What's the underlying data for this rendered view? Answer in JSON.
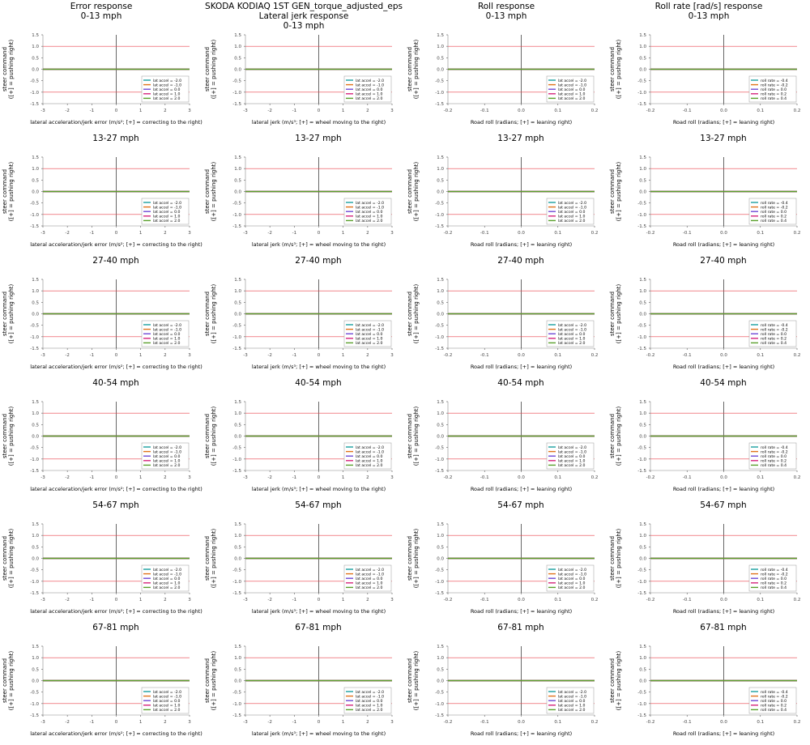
{
  "figure_title": "SKODA KODIAQ 1ST GEN_torque_adjusted_eps",
  "column_titles": [
    "Error response",
    "Lateral jerk response",
    "Roll response",
    "Roll rate [rad/s] response"
  ],
  "speed_bins": [
    "0-13 mph",
    "13-27 mph",
    "27-40 mph",
    "40-54 mph",
    "54-67 mph",
    "67-81 mph"
  ],
  "ylabel_line1": "steer command",
  "ylabel_line2": "([+] = pushing right)",
  "colors": {
    "reference_lines": "#e8424b",
    "axes": "#000000",
    "series": [
      "#1a9f9f",
      "#e0731c",
      "#6f49d6",
      "#d6257c",
      "#5aa02c"
    ]
  },
  "chart_data": [
    {
      "type": "line",
      "title": "Error response",
      "xlabel": "lateral acceleration/jerk error (m/s²; [+] = correcting to the right)",
      "ylabel": "steer command ([+] = pushing right)",
      "xlim": [
        -3,
        3
      ],
      "ylim": [
        -1.5,
        1.5
      ],
      "xticks": [
        "-3",
        "-2",
        "-1",
        "0",
        "1",
        "2",
        "3"
      ],
      "yticks": [
        "-1.5",
        "-1.0",
        "-0.5",
        "0.0",
        "0.5",
        "1.0",
        "1.5"
      ],
      "reference_lines_y": [
        1.0,
        -1.0
      ],
      "x": [
        -3,
        3
      ],
      "series": [
        {
          "name": "lat accel = -2.0",
          "values": [
            0,
            0
          ]
        },
        {
          "name": "lat accel = -1.0",
          "values": [
            0,
            0
          ]
        },
        {
          "name": "lat accel = 0.0",
          "values": [
            0,
            0
          ]
        },
        {
          "name": "lat accel = 1.0",
          "values": [
            0,
            0
          ]
        },
        {
          "name": "lat accel = 2.0",
          "values": [
            0,
            0
          ]
        }
      ],
      "legend": "bottom-right"
    },
    {
      "type": "line",
      "title": "Lateral jerk response",
      "xlabel": "lateral jerk (m/s³; [+] = wheel moving to the right)",
      "ylabel": "steer command ([+] = pushing right)",
      "xlim": [
        -3,
        3
      ],
      "ylim": [
        -1.5,
        1.5
      ],
      "xticks": [
        "-3",
        "-2",
        "-1",
        "0",
        "1",
        "2",
        "3"
      ],
      "yticks": [
        "-1.5",
        "-1.0",
        "-0.5",
        "0.0",
        "0.5",
        "1.0",
        "1.5"
      ],
      "reference_lines_y": [
        1.0,
        -1.0
      ],
      "x": [
        -3,
        3
      ],
      "series": [
        {
          "name": "lat accel = -2.0",
          "values": [
            0,
            0
          ]
        },
        {
          "name": "lat accel = -1.0",
          "values": [
            0,
            0
          ]
        },
        {
          "name": "lat accel = 0.0",
          "values": [
            0,
            0
          ]
        },
        {
          "name": "lat accel = 1.0",
          "values": [
            0,
            0
          ]
        },
        {
          "name": "lat accel = 2.0",
          "values": [
            0,
            0
          ]
        }
      ],
      "legend": "bottom-right"
    },
    {
      "type": "line",
      "title": "Roll response",
      "xlabel": "Road roll (radians; [+] = leaning right)",
      "ylabel": "steer command ([+] = pushing right)",
      "xlim": [
        -0.2,
        0.2
      ],
      "ylim": [
        -1.5,
        1.5
      ],
      "xticks": [
        "-0.2",
        "-0.1",
        "0.0",
        "0.1",
        "0.2"
      ],
      "yticks": [
        "-1.5",
        "-1.0",
        "-0.5",
        "0.0",
        "0.5",
        "1.0",
        "1.5"
      ],
      "reference_lines_y": [
        1.0,
        -1.0
      ],
      "x": [
        -0.2,
        0.2
      ],
      "series": [
        {
          "name": "lat accel = -2.0",
          "values": [
            0,
            0
          ]
        },
        {
          "name": "lat accel = -1.0",
          "values": [
            0,
            0
          ]
        },
        {
          "name": "lat accel = 0.0",
          "values": [
            0,
            0
          ]
        },
        {
          "name": "lat accel = 1.0",
          "values": [
            0,
            0
          ]
        },
        {
          "name": "lat accel = 2.0",
          "values": [
            0,
            0
          ]
        }
      ],
      "legend": "bottom-right"
    },
    {
      "type": "line",
      "title": "Roll rate [rad/s] response",
      "xlabel": "Road roll (radians; [+] = leaning right)",
      "ylabel": "steer command ([+] = pushing right)",
      "xlim": [
        -0.2,
        0.2
      ],
      "ylim": [
        -1.5,
        1.5
      ],
      "xticks": [
        "-0.2",
        "-0.1",
        "0.0",
        "0.1",
        "0.2"
      ],
      "yticks": [
        "-1.5",
        "-1.0",
        "-0.5",
        "0.0",
        "0.5",
        "1.0",
        "1.5"
      ],
      "reference_lines_y": [
        1.0,
        -1.0
      ],
      "x": [
        -0.2,
        0.2
      ],
      "series": [
        {
          "name": "roll rate = -0.4",
          "values": [
            0,
            0
          ]
        },
        {
          "name": "roll rate = -0.2",
          "values": [
            0,
            0
          ]
        },
        {
          "name": "roll rate = 0.0",
          "values": [
            0,
            0
          ]
        },
        {
          "name": "roll rate = 0.2",
          "values": [
            0,
            0
          ]
        },
        {
          "name": "roll rate = 0.4",
          "values": [
            0,
            0
          ]
        }
      ],
      "legend": "bottom-right"
    }
  ]
}
